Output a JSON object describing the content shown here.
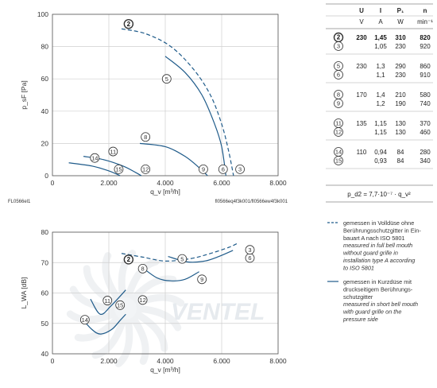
{
  "chart_data": [
    {
      "type": "line",
      "ylabel": "p_sF [Pa]",
      "xlabel": "q_v [m³/h]",
      "xlim": [
        0,
        8000
      ],
      "ylim": [
        0,
        100
      ],
      "xticks": [
        "0",
        "2.000",
        "4.000",
        "6.000",
        "8.000"
      ],
      "yticks": [
        "0",
        "20",
        "40",
        "60",
        "80",
        "100"
      ],
      "grid": true,
      "code_left": "FL0566el1",
      "code_right": "fl0566eq4f3k001/fl0566ew4f3k001",
      "series": [
        {
          "name": "2",
          "style": "dashed",
          "points": [
            [
              2450,
              91
            ],
            [
              3300,
              88
            ],
            [
              4200,
              80
            ],
            [
              5000,
              66
            ],
            [
              5600,
              50
            ],
            [
              6000,
              32
            ],
            [
              6250,
              15
            ],
            [
              6420,
              0
            ]
          ]
        },
        {
          "name": "5",
          "style": "solid",
          "points": [
            [
              4000,
              74
            ],
            [
              4700,
              64
            ],
            [
              5300,
              50
            ],
            [
              5750,
              32
            ],
            [
              6000,
              18
            ],
            [
              6150,
              0
            ]
          ]
        },
        {
          "name": "8",
          "style": "solid",
          "points": [
            [
              3100,
              20
            ],
            [
              4000,
              18
            ],
            [
              4700,
              12
            ],
            [
              5200,
              5
            ],
            [
              5500,
              0
            ]
          ]
        },
        {
          "name": "11",
          "style": "solid",
          "points": [
            [
              1100,
              12
            ],
            [
              1800,
              10
            ],
            [
              2500,
              6
            ],
            [
              2950,
              2
            ],
            [
              3150,
              0
            ]
          ]
        },
        {
          "name": "14",
          "style": "solid",
          "points": [
            [
              580,
              8
            ],
            [
              1400,
              6
            ],
            [
              2000,
              3
            ],
            [
              2400,
              0
            ]
          ]
        }
      ],
      "labels": [
        {
          "id": "2",
          "x": 2700,
          "y": 94,
          "bold": true
        },
        {
          "id": "5",
          "x": 4050,
          "y": 60
        },
        {
          "id": "8",
          "x": 3300,
          "y": 24
        },
        {
          "id": "11",
          "x": 2150,
          "y": 15
        },
        {
          "id": "14",
          "x": 1500,
          "y": 11
        },
        {
          "id": "15",
          "x": 2350,
          "y": 4
        },
        {
          "id": "12",
          "x": 3300,
          "y": 4
        },
        {
          "id": "9",
          "x": 5350,
          "y": 4
        },
        {
          "id": "6",
          "x": 6050,
          "y": 4
        },
        {
          "id": "3",
          "x": 6650,
          "y": 4
        }
      ]
    },
    {
      "type": "line",
      "ylabel": "L_WA [dB]",
      "xlabel": "q_v [m³/h]",
      "xlim": [
        0,
        8000
      ],
      "ylim": [
        40,
        80
      ],
      "xticks": [
        "0",
        "2.000",
        "4.000",
        "6.000",
        "8.000"
      ],
      "yticks": [
        "40",
        "50",
        "60",
        "70",
        "80"
      ],
      "grid": true,
      "series": [
        {
          "name": "2",
          "style": "dashed",
          "points": [
            [
              2450,
              73
            ],
            [
              3200,
              71.8
            ],
            [
              4000,
              70.5
            ],
            [
              4900,
              71.3
            ],
            [
              5600,
              73
            ],
            [
              6250,
              75
            ],
            [
              6600,
              76.5
            ]
          ]
        },
        {
          "name": "5",
          "style": "solid",
          "points": [
            [
              4100,
              72
            ],
            [
              4800,
              70.2
            ],
            [
              5400,
              70.5
            ],
            [
              5900,
              72
            ],
            [
              6400,
              74
            ]
          ]
        },
        {
          "name": "8",
          "style": "solid",
          "points": [
            [
              3100,
              69
            ],
            [
              3700,
              65
            ],
            [
              4200,
              64
            ],
            [
              4700,
              64.5
            ],
            [
              5200,
              67
            ]
          ]
        },
        {
          "name": "11",
          "style": "solid",
          "points": [
            [
              1350,
              58
            ],
            [
              1700,
              53
            ],
            [
              2100,
              56
            ],
            [
              2600,
              61
            ]
          ]
        },
        {
          "name": "14",
          "style": "solid",
          "points": [
            [
              1100,
              51
            ],
            [
              1400,
              48
            ],
            [
              1700,
              46.5
            ],
            [
              2100,
              48
            ],
            [
              2400,
              51
            ],
            [
              2600,
              53
            ]
          ]
        }
      ],
      "labels": [
        {
          "id": "2",
          "x": 2700,
          "y": 71,
          "bold": true
        },
        {
          "id": "5",
          "x": 4600,
          "y": 71.2
        },
        {
          "id": "8",
          "x": 3200,
          "y": 68
        },
        {
          "id": "9",
          "x": 5300,
          "y": 64.5
        },
        {
          "id": "6",
          "x": 7000,
          "y": 71.5
        },
        {
          "id": "3",
          "x": 7000,
          "y": 74.2
        },
        {
          "id": "11",
          "x": 1950,
          "y": 57.5
        },
        {
          "id": "15",
          "x": 2400,
          "y": 56
        },
        {
          "id": "12",
          "x": 3200,
          "y": 57.7
        },
        {
          "id": "14",
          "x": 1150,
          "y": 51.2
        }
      ]
    }
  ],
  "watermark": "VENTEL",
  "table": {
    "headers": [
      "U",
      "I",
      "P₁",
      "n"
    ],
    "units": [
      "V",
      "A",
      "W",
      "min⁻¹"
    ],
    "groups": [
      {
        "rows": [
          {
            "id": "2",
            "u": "230",
            "i": "1,45",
            "p": "310",
            "n": "820",
            "bold": true
          },
          {
            "id": "3",
            "u": "",
            "i": "1,05",
            "p": "230",
            "n": "920",
            "bold": false
          }
        ]
      },
      {
        "rows": [
          {
            "id": "5",
            "u": "230",
            "i": "1,3",
            "p": "290",
            "n": "860",
            "bold": false
          },
          {
            "id": "6",
            "u": "",
            "i": "1,1",
            "p": "230",
            "n": "910",
            "bold": false
          }
        ]
      },
      {
        "rows": [
          {
            "id": "8",
            "u": "170",
            "i": "1,4",
            "p": "210",
            "n": "580",
            "bold": false
          },
          {
            "id": "9",
            "u": "",
            "i": "1,2",
            "p": "190",
            "n": "740",
            "bold": false
          }
        ]
      },
      {
        "rows": [
          {
            "id": "11",
            "u": "135",
            "i": "1,15",
            "p": "130",
            "n": "370",
            "bold": false
          },
          {
            "id": "12",
            "u": "",
            "i": "1,15",
            "p": "130",
            "n": "460",
            "bold": false
          }
        ]
      },
      {
        "rows": [
          {
            "id": "14",
            "u": "110",
            "i": "0,94",
            "p": "84",
            "n": "280",
            "bold": false
          },
          {
            "id": "15",
            "u": "",
            "i": "0,93",
            "p": "84",
            "n": "340",
            "bold": false
          }
        ]
      }
    ],
    "formula": "p_d2 = 7,7·10⁻⁷ · q_v²"
  },
  "legend": [
    {
      "style": "dashed",
      "lines": [
        "gemessen in Volldüse ohne",
        "Berührungsschutzgitter in Ein-",
        "bauart A nach ISO 5801"
      ],
      "italic_lines": [
        "measured in full bell mouth",
        "without guard grille in",
        "installation type A according",
        "to ISO 5801"
      ]
    },
    {
      "style": "solid",
      "lines": [
        "gemessen in Kurzdüse mit",
        "druckseitigem Berührungs-",
        "schutzgitter"
      ],
      "italic_lines": [
        "measured in short bell mouth",
        "with guard grille on the",
        "pressure side"
      ]
    }
  ],
  "colors": {
    "curve": "#1f5b8a",
    "grid": "#cfcfcf",
    "axis": "#555555"
  }
}
